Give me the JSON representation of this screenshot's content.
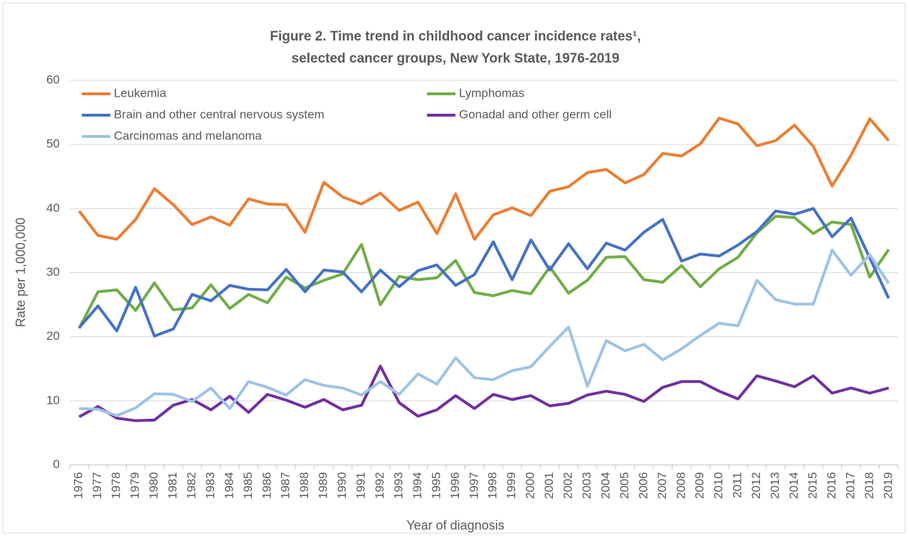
{
  "chart_data": {
    "type": "line",
    "title": [
      "Figure 2. Time trend in childhood cancer incidence rates¹,",
      "selected cancer groups, New York State, 1976-2019"
    ],
    "x_label": "Year of diagnosis",
    "y_label": "Rate per 1,000,000",
    "categories": [
      "1976",
      "1977",
      "1978",
      "1979",
      "1980",
      "1981",
      "1982",
      "1983",
      "1984",
      "1985",
      "1986",
      "1987",
      "1988",
      "1989",
      "1990",
      "1991",
      "1992",
      "1993",
      "1994",
      "1995",
      "1996",
      "1997",
      "1998",
      "1999",
      "2000",
      "2001",
      "2002",
      "2003",
      "2004",
      "2005",
      "2006",
      "2007",
      "2008",
      "2009",
      "2010",
      "2011",
      "2012",
      "2013",
      "2014",
      "2015",
      "2016",
      "2017",
      "2018",
      "2019"
    ],
    "series": [
      {
        "name": "Leukemia",
        "color": "#ed7d31",
        "values": [
          39.6,
          35.8,
          35.2,
          38.3,
          43.1,
          40.6,
          37.5,
          38.7,
          37.4,
          41.5,
          40.7,
          40.6,
          36.3,
          44.1,
          41.8,
          40.7,
          42.4,
          39.7,
          41.0,
          36.1,
          42.3,
          35.2,
          39.0,
          40.1,
          38.9,
          42.7,
          43.4,
          45.6,
          46.1,
          44.0,
          45.3,
          48.6,
          48.2,
          50.1,
          54.1,
          53.2,
          49.8,
          50.6,
          53.0,
          49.7,
          43.5,
          48.3,
          54.0,
          50.6
        ]
      },
      {
        "name": "Lymphomas",
        "color": "#70ad47",
        "values": [
          21.3,
          27.0,
          27.3,
          24.1,
          28.4,
          24.2,
          24.5,
          28.1,
          24.4,
          26.6,
          25.3,
          29.3,
          27.6,
          28.8,
          29.8,
          34.4,
          25.0,
          29.4,
          28.9,
          29.2,
          31.9,
          26.9,
          26.4,
          27.2,
          26.7,
          30.9,
          26.8,
          28.8,
          32.4,
          32.5,
          28.9,
          28.5,
          31.1,
          27.8,
          30.6,
          32.4,
          36.2,
          38.8,
          38.6,
          36.1,
          37.9,
          37.5,
          29.3,
          33.6
        ]
      },
      {
        "name": "Brain and other central nervous system",
        "color": "#4472c4",
        "values": [
          21.4,
          24.8,
          20.9,
          27.7,
          20.1,
          21.2,
          26.6,
          25.6,
          28.0,
          27.4,
          27.3,
          30.5,
          27.0,
          30.4,
          30.1,
          27.0,
          30.4,
          27.8,
          30.3,
          31.2,
          28.0,
          29.7,
          34.8,
          28.9,
          35.1,
          30.4,
          34.5,
          30.6,
          34.6,
          33.5,
          36.3,
          38.3,
          31.8,
          32.9,
          32.6,
          34.3,
          36.4,
          39.6,
          39.1,
          40.0,
          35.6,
          38.5,
          32.3,
          26.0
        ]
      },
      {
        "name": "Gonadal and other germ cell",
        "color": "#7030a0",
        "values": [
          7.5,
          9.1,
          7.3,
          6.9,
          7.0,
          9.3,
          10.2,
          8.6,
          10.7,
          8.2,
          11.0,
          10.1,
          9.0,
          10.2,
          8.6,
          9.3,
          15.4,
          9.7,
          7.6,
          8.6,
          10.8,
          8.8,
          11.0,
          10.2,
          10.8,
          9.2,
          9.6,
          10.9,
          11.5,
          11.0,
          9.9,
          12.1,
          13.0,
          13.0,
          11.5,
          10.3,
          13.9,
          13.1,
          12.2,
          13.9,
          11.2,
          12.0,
          11.2,
          12.0
        ]
      },
      {
        "name": "Carcinomas and melanoma",
        "color": "#9dc3e6",
        "values": [
          8.8,
          8.7,
          7.7,
          8.9,
          11.1,
          11.0,
          9.9,
          12.0,
          8.8,
          13.0,
          12.1,
          10.9,
          13.3,
          12.4,
          12.0,
          10.9,
          13.0,
          11.0,
          14.2,
          12.6,
          16.7,
          13.6,
          13.3,
          14.7,
          15.3,
          18.5,
          21.5,
          12.3,
          19.4,
          17.8,
          18.8,
          16.4,
          18.1,
          20.2,
          22.1,
          21.7,
          28.8,
          25.8,
          25.1,
          25.1,
          33.5,
          29.6,
          32.8,
          28.3
        ]
      }
    ],
    "ylim": [
      0,
      60
    ],
    "yticks": [
      0,
      10,
      20,
      30,
      40,
      50,
      60
    ],
    "grid": true,
    "legend": "top-left"
  }
}
